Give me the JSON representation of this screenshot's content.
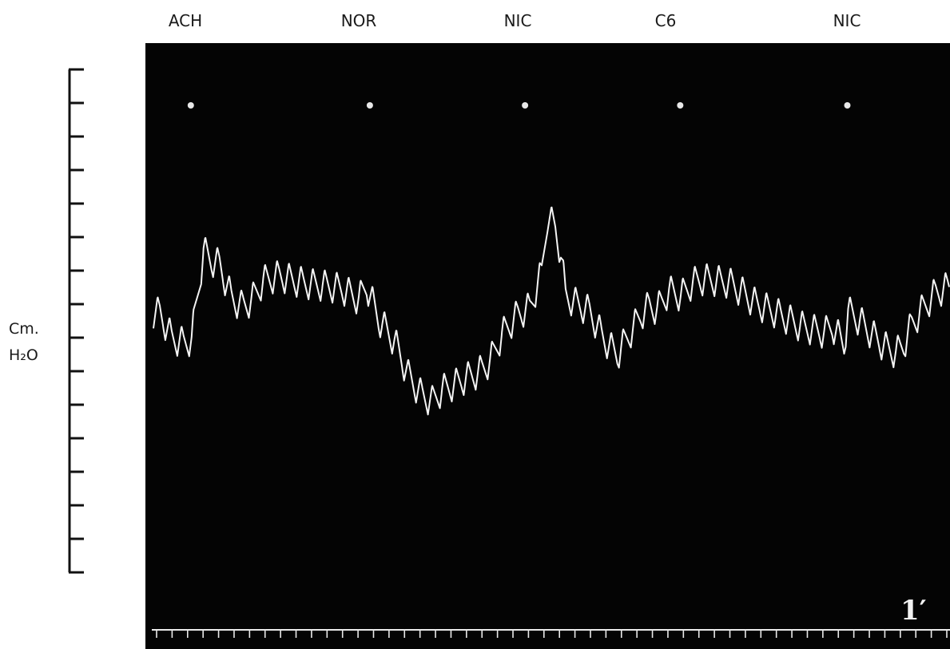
{
  "chart_data": {
    "type": "line",
    "title": "",
    "xlabel": "",
    "ylabel": "Cm. H2O",
    "ylabel_lines": [
      "Cm.",
      "H₂O"
    ],
    "y_scale_divisions": 15,
    "markers": [
      {
        "label": "ACH",
        "x": 50
      },
      {
        "label": "NOR",
        "x": 275
      },
      {
        "label": "NIC",
        "x": 470
      },
      {
        "label": "C6",
        "x": 665
      },
      {
        "label": "NIC",
        "x": 875
      }
    ],
    "time_marker_label": "1′",
    "time_ticks": 52,
    "colors": {
      "background": "#040404",
      "trace": "#f4f4f4",
      "axis": "#111111"
    },
    "series": [
      {
        "values": [
          [
            8,
            7.75
          ],
          [
            23,
            7.0
          ],
          [
            38,
            6.85
          ],
          [
            48,
            6.95
          ],
          [
            63,
            9.6
          ],
          [
            73,
            9.3
          ],
          [
            83,
            9.2
          ],
          [
            98,
            8.2
          ],
          [
            110,
            7.95
          ],
          [
            123,
            8.1
          ],
          [
            138,
            8.7
          ],
          [
            158,
            8.85
          ],
          [
            178,
            8.7
          ],
          [
            198,
            8.6
          ],
          [
            218,
            8.55
          ],
          [
            238,
            8.45
          ],
          [
            258,
            8.15
          ],
          [
            268,
            8.55
          ],
          [
            283,
            7.55
          ],
          [
            303,
            6.9
          ],
          [
            320,
            5.9
          ],
          [
            335,
            5.35
          ],
          [
            350,
            5.1
          ],
          [
            363,
            5.45
          ],
          [
            378,
            5.6
          ],
          [
            393,
            5.8
          ],
          [
            408,
            5.95
          ],
          [
            423,
            6.3
          ],
          [
            438,
            7.1
          ],
          [
            458,
            7.7
          ],
          [
            473,
            7.9
          ],
          [
            488,
            8.95
          ],
          [
            495,
            10.6
          ],
          [
            505,
            10.3
          ],
          [
            512,
            9.5
          ],
          [
            518,
            8.25
          ],
          [
            533,
            8.0
          ],
          [
            548,
            7.8
          ],
          [
            563,
            7.1
          ],
          [
            573,
            6.75
          ],
          [
            583,
            6.5
          ],
          [
            598,
            7.1
          ],
          [
            613,
            7.7
          ],
          [
            623,
            7.95
          ],
          [
            633,
            7.85
          ],
          [
            648,
            8.4
          ],
          [
            663,
            8.25
          ],
          [
            678,
            8.65
          ],
          [
            693,
            8.75
          ],
          [
            708,
            8.7
          ],
          [
            723,
            8.65
          ],
          [
            738,
            8.4
          ],
          [
            758,
            8.0
          ],
          [
            778,
            7.8
          ],
          [
            798,
            7.55
          ],
          [
            813,
            7.35
          ],
          [
            828,
            7.25
          ],
          [
            843,
            7.15
          ],
          [
            853,
            7.35
          ],
          [
            868,
            6.8
          ],
          [
            873,
            7.8
          ],
          [
            888,
            7.5
          ],
          [
            903,
            7.1
          ],
          [
            918,
            6.75
          ],
          [
            933,
            6.55
          ],
          [
            943,
            6.8
          ],
          [
            953,
            7.4
          ],
          [
            968,
            7.9
          ],
          [
            983,
            8.35
          ],
          [
            998,
            8.5
          ]
        ]
      }
    ]
  }
}
